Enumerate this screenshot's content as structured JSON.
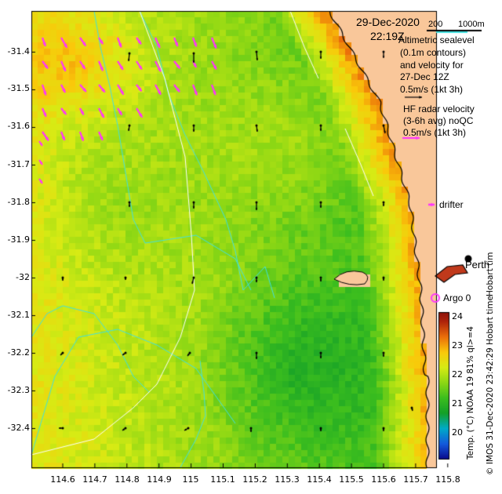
{
  "header": {
    "date": "29-Dec-2020",
    "time": "22:19Z",
    "scale_200": "200",
    "scale_1000": "1000m"
  },
  "legend": {
    "altimetric_lines": [
      "Altimetric sealevel",
      "(0.1m contours)",
      "and velocity for",
      "27-Dec 12Z",
      "0.5m/s (1kt 3h)"
    ],
    "hf_lines": [
      "HF radar velocity",
      "(3-6h avg) noQC",
      "0.5m/s (1kt 3h)"
    ],
    "drifter": "drifter",
    "argo": "Argo 0",
    "perth": "Perth",
    "hobart": "Hobart tim"
  },
  "colors": {
    "altimetry_arrow": "#000000",
    "hf_arrow": "#ff33ff",
    "contour": "#40e0e0",
    "land": "#f9c79a",
    "coast": "#000000"
  },
  "y_axis": [
    "-31.4",
    "-31.5",
    "-31.6",
    "-31.7",
    "-31.8",
    "-31.9",
    "-32",
    "-32.1",
    "-32.2",
    "-32.3",
    "-32.4"
  ],
  "x_axis": [
    "114.6",
    "114.7",
    "114.8",
    "114.9",
    "115",
    "115.1",
    "115.2",
    "115.3",
    "115.4",
    "115.5",
    "115.6",
    "115.7",
    "115.8"
  ],
  "colorbar": {
    "ticks": [
      "24",
      "23",
      "22",
      "21",
      "20"
    ],
    "title": "Temp. (°C) NOAA 19 81% ql>=4",
    "credit": "© IMOS 31-Dec-2020 23:42:29 Hobart time"
  }
}
